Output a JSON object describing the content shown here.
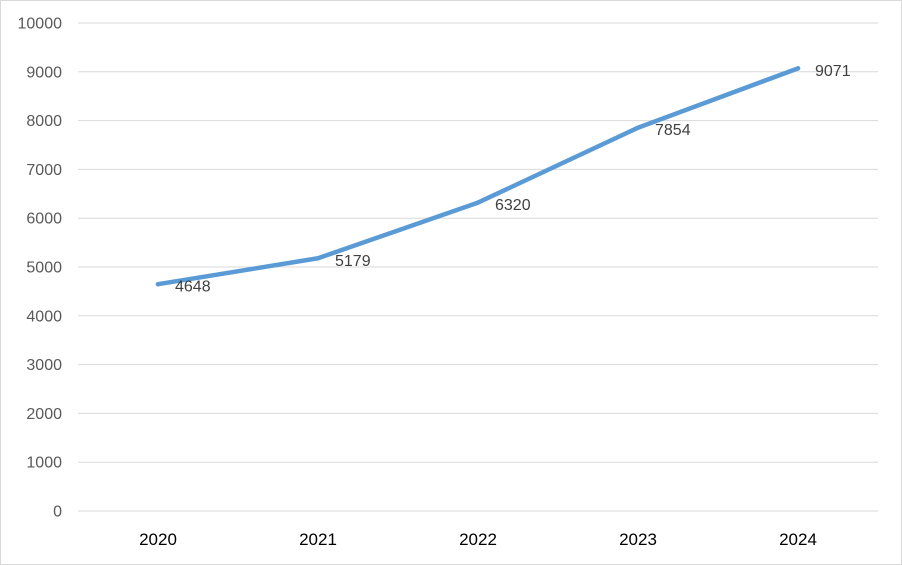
{
  "chart_data": {
    "type": "line",
    "title": "",
    "xlabel": "",
    "ylabel": "",
    "categories": [
      "2020",
      "2021",
      "2022",
      "2023",
      "2024"
    ],
    "series": [
      {
        "values": [
          4648,
          5179,
          6320,
          7854,
          9071
        ],
        "color": "#5b9bd5",
        "data_labels": [
          "4648",
          "5179",
          "6320",
          "7854",
          "9071"
        ]
      }
    ],
    "ylim": [
      0,
      10000
    ],
    "yticks": [
      "0",
      "1000",
      "2000",
      "3000",
      "4000",
      "5000",
      "6000",
      "7000",
      "8000",
      "9000",
      "10000"
    ],
    "grid": true,
    "legend": "none"
  }
}
